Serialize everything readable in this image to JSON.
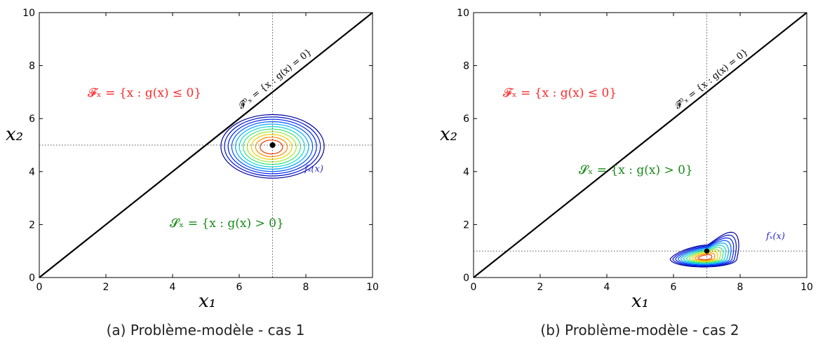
{
  "chart_data": [
    {
      "type": "contour",
      "caption": "(a) Problème-modèle - cas 1",
      "xlabel": "x₁",
      "ylabel": "x₂",
      "xlim": [
        0,
        10
      ],
      "ylim": [
        0,
        10
      ],
      "xticks": [
        "0",
        "2",
        "4",
        "6",
        "8",
        "10"
      ],
      "yticks": [
        "0",
        "2",
        "4",
        "6",
        "8",
        "10"
      ],
      "limit_state_line": {
        "x": [
          0,
          10
        ],
        "y": [
          0,
          10
        ],
        "label": "𝓕⁰ₓ = {x : g(x) = 0}"
      },
      "failure_label": "𝓕ₓ = {x : g(x) ≤ 0}",
      "safe_label": "𝓢ₓ = {x : g(x) > 0}",
      "density_label": "fₓ(x)",
      "mean_point": {
        "x": 7,
        "y": 5
      },
      "contours": {
        "center": [
          7,
          4.95
        ],
        "levels": 12,
        "outer_radius": [
          1.55,
          1.2
        ],
        "shape": "elliptic"
      }
    },
    {
      "type": "contour",
      "caption": "(b) Problème-modèle - cas 2",
      "xlabel": "x₁",
      "ylabel": "x₂",
      "xlim": [
        0,
        10
      ],
      "ylim": [
        0,
        10
      ],
      "xticks": [
        "0",
        "2",
        "4",
        "6",
        "8",
        "10"
      ],
      "yticks": [
        "0",
        "2",
        "4",
        "6",
        "8",
        "10"
      ],
      "limit_state_line": {
        "x": [
          0,
          10
        ],
        "y": [
          0,
          10
        ],
        "label": "𝓕⁰ₓ = {x : g(x) = 0}"
      },
      "failure_label": "𝓕ₓ = {x : g(x) ≤ 0}",
      "safe_label": "𝓢ₓ = {x : g(x) > 0}",
      "density_label": "fₓ(x)",
      "mean_point": {
        "x": 7,
        "y": 1
      },
      "contours": {
        "center": [
          6.9,
          0.7
        ],
        "levels": 12,
        "shape": "skewed"
      }
    }
  ],
  "colors": {
    "failure": "#ff2a2a",
    "safe": "#1a8a1a",
    "density": "#2b2bd6",
    "axis": "#000000"
  }
}
